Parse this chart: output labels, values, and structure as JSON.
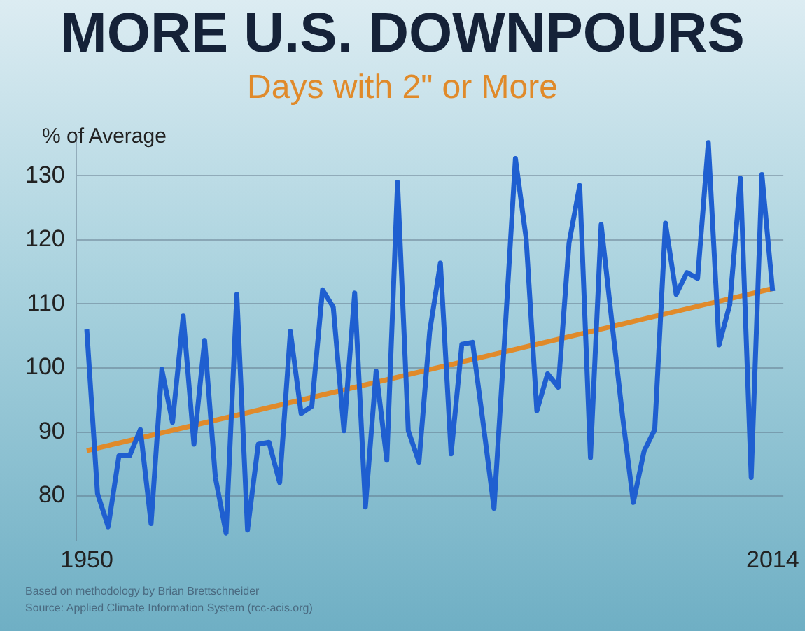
{
  "chart_data": {
    "type": "line",
    "title": "MORE U.S. DOWNPOURS",
    "subtitle": "Days with 2\" or More",
    "ylabel": "% of Average",
    "annotations": [
      "Based on methodology by Brian Brettschneider",
      "Source: Applied Climate Information System (rcc-acis.org)"
    ],
    "x": [
      1950,
      1951,
      1952,
      1953,
      1954,
      1955,
      1956,
      1957,
      1958,
      1959,
      1960,
      1961,
      1962,
      1963,
      1964,
      1965,
      1966,
      1967,
      1968,
      1969,
      1970,
      1971,
      1972,
      1973,
      1974,
      1975,
      1976,
      1977,
      1978,
      1979,
      1980,
      1981,
      1982,
      1983,
      1984,
      1985,
      1986,
      1987,
      1988,
      1989,
      1990,
      1991,
      1992,
      1993,
      1994,
      1995,
      1996,
      1997,
      1998,
      1999,
      2000,
      2001,
      2002,
      2003,
      2004,
      2005,
      2006,
      2007,
      2008,
      2009,
      2010,
      2011,
      2012,
      2013,
      2014
    ],
    "series": [
      {
        "color": "#1f5fd0",
        "values": [
          106,
          80.4,
          75.2,
          86.3,
          86.3,
          90.4,
          75.7,
          99.8,
          91.5,
          108.1,
          88.1,
          104.3,
          82.9,
          74.2,
          111.5,
          74.7,
          88.1,
          88.4,
          82.1,
          105.7,
          92.9,
          94,
          112.2,
          109.5,
          90.2,
          111.7,
          78.3,
          99.5,
          85.6,
          129,
          90.2,
          85.3,
          105.7,
          116.4,
          86.6,
          103.7,
          104,
          91.2,
          78.1,
          104.8,
          132.7,
          120.2,
          93.3,
          99.1,
          97,
          119.5,
          128.5,
          86,
          122.4,
          107.2,
          92.4,
          79,
          87,
          90.4,
          122.6,
          111.5,
          114.9,
          114,
          135.2,
          103.6,
          109.9,
          129.6,
          82.9,
          130.2,
          112
        ]
      },
      {
        "color": "#e08a2a",
        "x": [
          1950,
          2014
        ],
        "values": [
          87.1,
          112.4
        ]
      }
    ],
    "xlim": [
      1949,
      2015
    ],
    "xticks": [
      1950,
      2014
    ],
    "ylim": [
      73,
      136
    ],
    "yticks": [
      80,
      90,
      100,
      110,
      120,
      130
    ],
    "grid": "y",
    "legend": false,
    "marker": "none",
    "line_style": "solid"
  }
}
